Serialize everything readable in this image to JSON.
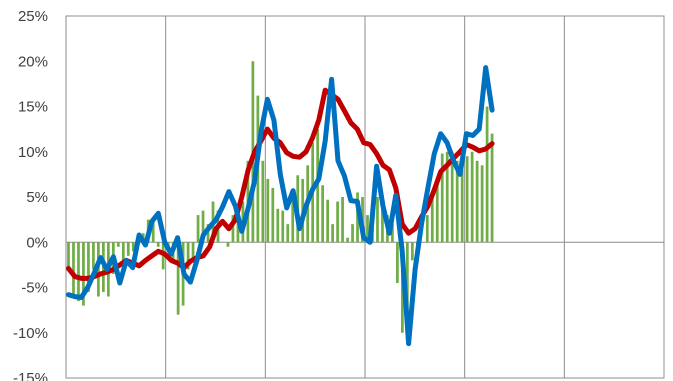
{
  "chart_data": {
    "type": "bar+line",
    "title": "",
    "xlabel": "",
    "ylabel": "",
    "ylim": [
      -15,
      25
    ],
    "yticks": [
      "25%",
      "20%",
      "15%",
      "10%",
      "5%",
      "0%",
      "-5%",
      "-10%",
      "-15%"
    ],
    "ytick_values": [
      25,
      20,
      15,
      10,
      5,
      0,
      -5,
      -10,
      -15
    ],
    "x_groups": 6,
    "points_per_group": 20,
    "grid": "vertical lines between groups",
    "legend": "none",
    "colors": {
      "bars": "#70AD47",
      "line_blue": "#0070C0",
      "line_red": "#C00000",
      "axis": "#8c8c8c"
    },
    "series": [
      {
        "type": "bar",
        "color": "#70AD47",
        "values": [
          -3,
          -6,
          -6.5,
          -7,
          -5.5,
          -3,
          -6,
          -5.5,
          -6,
          -3.5,
          -0.5,
          -2,
          -1.5,
          -1,
          0,
          1,
          2.5,
          2.5,
          -0.5,
          -3,
          -1,
          -2,
          -8,
          -7,
          -3,
          -2,
          3,
          3.5,
          2,
          4.5,
          3.5,
          0,
          -0.5,
          3,
          3,
          4.5,
          9,
          20,
          16.2,
          9,
          7,
          6,
          3.7,
          3.5,
          2,
          5,
          7.4,
          7,
          8.5,
          11,
          12.5,
          6.3,
          4.7,
          2,
          4.5,
          5,
          0.5,
          2,
          5.5,
          5,
          3,
          3,
          5,
          4,
          3,
          2,
          -4.5,
          -10,
          -8,
          -2,
          -1,
          0,
          3,
          5,
          6.5,
          9.8,
          10,
          10,
          9,
          8,
          9.5,
          10,
          9,
          8.5,
          15,
          12
        ]
      },
      {
        "type": "line",
        "color": "#0070C0",
        "values": [
          -5.8,
          -6,
          -6.1,
          -5,
          -3.4,
          -1.7,
          -3,
          -1.6,
          -4.5,
          -2,
          -2.8,
          0.8,
          -0.3,
          2.3,
          3.2,
          0,
          -1.3,
          0.5,
          -3.5,
          -4.4,
          -2,
          0.8,
          1.7,
          2.5,
          3.9,
          5.6,
          4,
          1.2,
          3.8,
          6.8,
          12.2,
          15.8,
          13.5,
          7.5,
          3.8,
          5.7,
          1.5,
          4,
          5.8,
          7,
          11.2,
          18,
          9,
          7.3,
          4.6,
          4.5,
          0.5,
          0,
          8.4,
          4,
          1,
          5.2,
          -1,
          -11.2,
          -3,
          2,
          6,
          9.8,
          12,
          11,
          9,
          7.5,
          12,
          11.8,
          12.5,
          19.3,
          14.6
        ]
      },
      {
        "type": "line",
        "color": "#C00000",
        "values": [
          -2.9,
          -3.8,
          -4,
          -4,
          -3.8,
          -3.5,
          -3.3,
          -3,
          -2.5,
          -2,
          -2.3,
          -2.6,
          -2,
          -1.5,
          -1,
          -1.3,
          -2,
          -2.3,
          -2.8,
          -2.1,
          -1.7,
          -1.5,
          -0.5,
          1.5,
          2.3,
          1.5,
          2.5,
          5,
          8,
          10,
          11.2,
          12.5,
          11.5,
          11,
          9.9,
          9.5,
          9.4,
          10,
          11.5,
          13.5,
          16.8,
          16.3,
          15.8,
          14.5,
          13.2,
          12.5,
          11,
          10.8,
          9.8,
          8.5,
          8,
          6,
          2,
          1,
          1.5,
          2.8,
          4,
          5.8,
          7.8,
          8.5,
          9.3,
          10,
          10.8,
          10.5,
          10.1,
          10.3,
          10.9
        ]
      }
    ]
  }
}
